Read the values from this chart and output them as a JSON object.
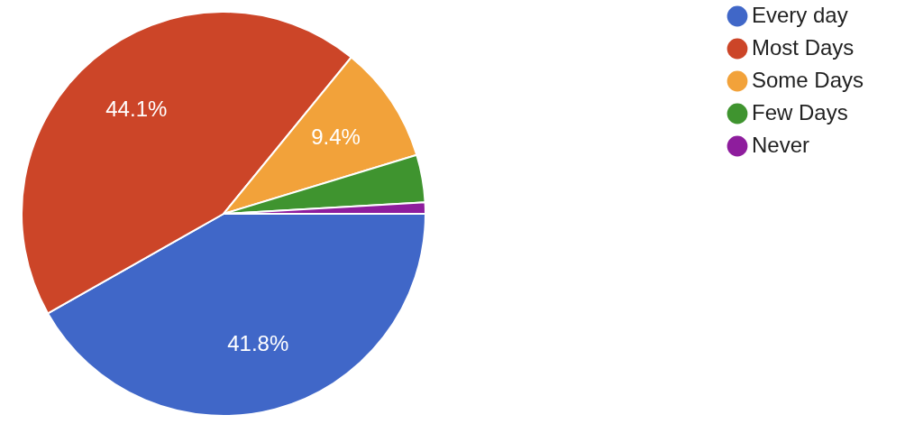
{
  "chart_data": {
    "type": "pie",
    "categories": [
      "Every day",
      "Most Days",
      "Some Days",
      "Few Days",
      "Never"
    ],
    "values": [
      41.8,
      44.1,
      9.4,
      3.8,
      0.9
    ],
    "colors": [
      "#4067c8",
      "#cc4528",
      "#f2a23a",
      "#3f942f",
      "#8e1d9d"
    ],
    "value_labels": [
      "41.8%",
      "44.1%",
      "9.4%",
      null,
      null
    ],
    "legend": "top right"
  }
}
